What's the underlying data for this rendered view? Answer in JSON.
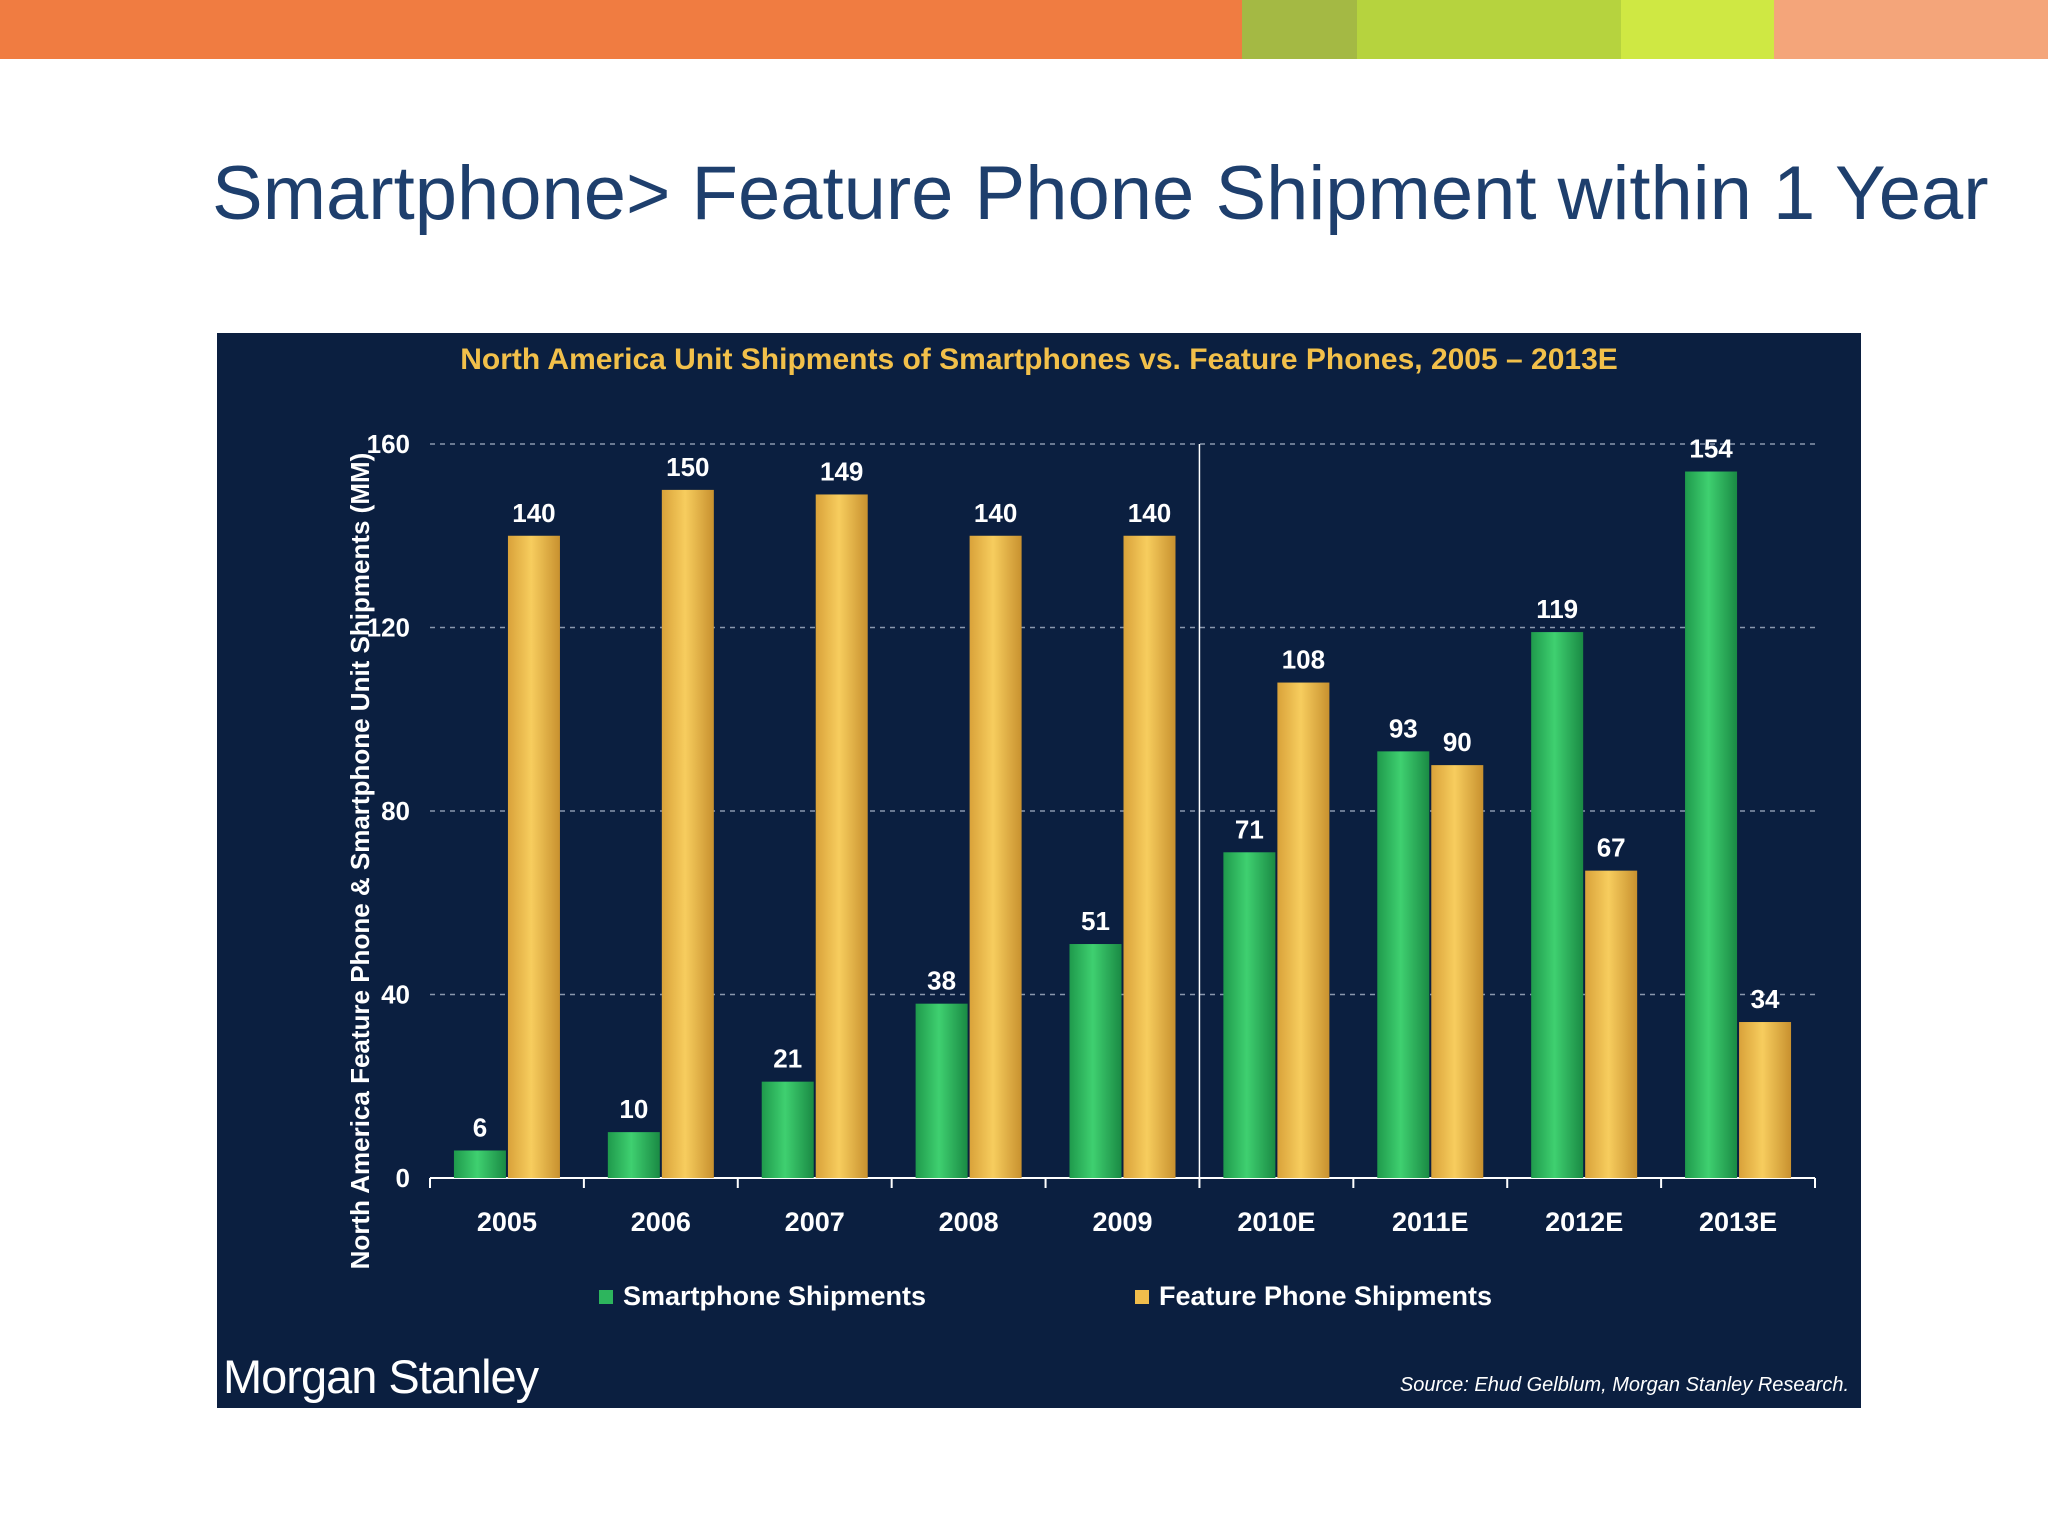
{
  "colors": {
    "topbar": [
      "#f07c41",
      "#a4b944",
      "#b6d33e",
      "#cfe843",
      "#f4a57a"
    ],
    "title": "#1e3f6d",
    "panel": "#0b1f40",
    "smartphone": "#2db55d",
    "feature": "#f0bd4c",
    "chart_title": "#f2c04a"
  },
  "slide": {
    "title": "Smartphone> Feature Phone Shipment within 1 Year"
  },
  "brand": "Morgan Stanley",
  "source": "Source: Ehud Gelblum, Morgan Stanley Research.",
  "chart_data": {
    "type": "bar",
    "title": "North America Unit Shipments of Smartphones vs. Feature Phones, 2005 – 2013E",
    "ylabel": "North America Feature Phone & Smartphone Unit Shipments (MM)",
    "xlabel": "",
    "ylim": [
      0,
      160
    ],
    "yticks": [
      0,
      40,
      80,
      120,
      160
    ],
    "grid": true,
    "categories": [
      "2005",
      "2006",
      "2007",
      "2008",
      "2009",
      "2010E",
      "2011E",
      "2012E",
      "2013E"
    ],
    "series": [
      {
        "name": "Smartphone Shipments",
        "values": [
          6,
          10,
          21,
          38,
          51,
          71,
          93,
          119,
          154
        ]
      },
      {
        "name": "Feature Phone Shipments",
        "values": [
          140,
          150,
          149,
          140,
          140,
          108,
          90,
          67,
          34
        ]
      }
    ],
    "legend": [
      "Smartphone Shipments",
      "Feature Phone Shipments"
    ],
    "legend_position": "bottom"
  }
}
